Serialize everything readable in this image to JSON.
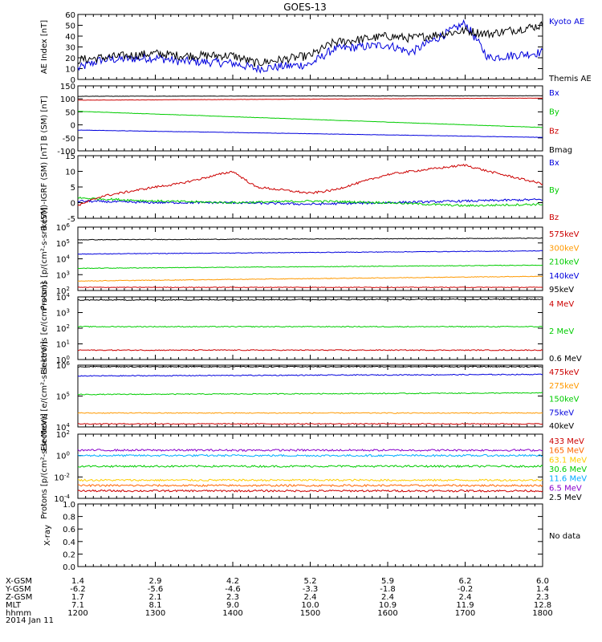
{
  "title": "GOES-13",
  "chart_data": [
    {
      "type": "line",
      "panel": "ae",
      "ylabel": "AE Index [nT]",
      "ylim": [
        0,
        60
      ],
      "yticks": [
        0,
        10,
        20,
        30,
        40,
        50,
        60
      ],
      "scale": "linear",
      "legend_placement": "right",
      "series": [
        {
          "name": "Kyoto AE",
          "color": "#0000dd",
          "x": [
            1200,
            1230,
            1300,
            1330,
            1400,
            1430,
            1500,
            1530,
            1600,
            1630,
            1700,
            1730,
            1800
          ],
          "values": [
            10,
            18,
            20,
            17,
            15,
            10,
            14,
            28,
            32,
            25,
            52,
            20,
            25
          ]
        },
        {
          "name": "Themis AE",
          "color": "#000000",
          "x": [
            1200,
            1230,
            1300,
            1330,
            1400,
            1430,
            1500,
            1530,
            1600,
            1630,
            1700,
            1730,
            1800
          ],
          "values": [
            18,
            20,
            24,
            22,
            22,
            15,
            22,
            34,
            40,
            38,
            45,
            42,
            50
          ]
        }
      ]
    },
    {
      "type": "line",
      "panel": "bfield",
      "ylabel": "B (SM) [nT]",
      "ylim": [
        -100,
        150
      ],
      "yticks": [
        -100,
        -50,
        0,
        50,
        100,
        150
      ],
      "scale": "linear",
      "legend_placement": "right",
      "series": [
        {
          "name": "Bx",
          "color": "#0000dd",
          "x": [
            1200,
            1800
          ],
          "values": [
            -20,
            -48
          ]
        },
        {
          "name": "By",
          "color": "#00cc00",
          "x": [
            1200,
            1800
          ],
          "values": [
            52,
            -10
          ]
        },
        {
          "name": "Bz",
          "color": "#cc0000",
          "x": [
            1200,
            1800
          ],
          "values": [
            95,
            103
          ]
        },
        {
          "name": "Bmag",
          "color": "#000000",
          "x": [
            1200,
            1800
          ],
          "values": [
            110,
            112
          ]
        }
      ]
    },
    {
      "type": "line",
      "panel": "bdiff",
      "ylabel": "B (SM)-IGRF (SM) [nT]",
      "ylim": [
        -5,
        15
      ],
      "yticks": [
        -5,
        0,
        5,
        10,
        15
      ],
      "scale": "linear",
      "legend_placement": "right",
      "series": [
        {
          "name": "Bx",
          "color": "#0000dd",
          "x": [
            1200,
            1300,
            1400,
            1500,
            1600,
            1700,
            1800
          ],
          "values": [
            0.5,
            0,
            0,
            -0.5,
            0,
            0.5,
            1
          ]
        },
        {
          "name": "By",
          "color": "#00cc00",
          "x": [
            1200,
            1300,
            1400,
            1500,
            1600,
            1700,
            1800
          ],
          "values": [
            1.5,
            0.5,
            0,
            0.5,
            0,
            -1,
            -0.5
          ]
        },
        {
          "name": "Bz",
          "color": "#cc0000",
          "x": [
            1200,
            1230,
            1300,
            1330,
            1400,
            1430,
            1500,
            1530,
            1600,
            1630,
            1700,
            1730,
            1800
          ],
          "values": [
            -1,
            2,
            5,
            6,
            10,
            5,
            3,
            4,
            9,
            10,
            12,
            10,
            6
          ]
        }
      ]
    },
    {
      "type": "line",
      "panel": "protons_low",
      "ylabel": "Protons [p/(cm²-s-sr-keV)]",
      "ylim_exp": [
        2,
        6
      ],
      "ytick_exponents": [
        2,
        3,
        4,
        5,
        6
      ],
      "scale": "log",
      "legend_placement": "right",
      "series": [
        {
          "name": "575keV",
          "color": "#cc0000",
          "x": [
            1200,
            1800
          ],
          "log10_values": [
            2.2,
            2.2
          ]
        },
        {
          "name": "300keV",
          "color": "#ff9900",
          "x": [
            1200,
            1800
          ],
          "log10_values": [
            2.6,
            2.9
          ]
        },
        {
          "name": "210keV",
          "color": "#00cc00",
          "x": [
            1200,
            1800
          ],
          "log10_values": [
            3.4,
            3.6
          ]
        },
        {
          "name": "140keV",
          "color": "#0000dd",
          "x": [
            1200,
            1800
          ],
          "log10_values": [
            4.3,
            4.5
          ]
        },
        {
          "name": "95keV",
          "color": "#000000",
          "x": [
            1200,
            1800
          ],
          "log10_values": [
            5.2,
            5.3
          ]
        }
      ]
    },
    {
      "type": "line",
      "panel": "electrons_mev",
      "ylabel": "Electrons [e/(cm²-s-sr)]",
      "ylim_exp": [
        0,
        4
      ],
      "ytick_exponents": [
        0,
        1,
        2,
        3,
        4
      ],
      "scale": "log",
      "legend_placement": "right",
      "series": [
        {
          "name": "4 MeV",
          "color": "#cc0000",
          "x": [
            1200,
            1800
          ],
          "log10_values": [
            0.6,
            0.6
          ]
        },
        {
          "name": "2 MeV",
          "color": "#00cc00",
          "x": [
            1200,
            1800
          ],
          "log10_values": [
            2.1,
            2.1
          ]
        },
        {
          "name": "0.6 MeV",
          "color": "#000000",
          "x": [
            1200,
            1800
          ],
          "log10_values": [
            3.8,
            3.85
          ]
        }
      ]
    },
    {
      "type": "line",
      "panel": "electrons_kev",
      "ylabel": "Electrons [e/(cm²-s-sr-keV)]",
      "ylim_exp": [
        4,
        6
      ],
      "ytick_exponents": [
        4,
        5,
        6
      ],
      "scale": "log",
      "legend_placement": "right",
      "series": [
        {
          "name": "475keV",
          "color": "#cc0000",
          "x": [
            1200,
            1800
          ],
          "log10_values": [
            4.1,
            4.1
          ]
        },
        {
          "name": "275keV",
          "color": "#ff9900",
          "x": [
            1200,
            1800
          ],
          "log10_values": [
            4.45,
            4.45
          ]
        },
        {
          "name": "150keV",
          "color": "#00cc00",
          "x": [
            1200,
            1800
          ],
          "log10_values": [
            5.05,
            5.1
          ]
        },
        {
          "name": "75keV",
          "color": "#0000dd",
          "x": [
            1200,
            1800
          ],
          "log10_values": [
            5.65,
            5.7
          ]
        },
        {
          "name": "40keV",
          "color": "#000000",
          "x": [
            1200,
            1800
          ],
          "log10_values": [
            5.95,
            5.95
          ]
        }
      ]
    },
    {
      "type": "line",
      "panel": "protons_mev",
      "ylabel": "Protons [p/(cm²-s-sr-MeV)]",
      "ylim_exp": [
        -4,
        2
      ],
      "ytick_exponents": [
        -4,
        -2,
        0,
        2
      ],
      "scale": "log",
      "legend_placement": "right",
      "series": [
        {
          "name": "433 MeV",
          "color": "#cc0000",
          "x": [
            1200,
            1800
          ],
          "log10_values": [
            -3.3,
            -3.3
          ]
        },
        {
          "name": "165 MeV",
          "color": "#ff6600",
          "x": [
            1200,
            1800
          ],
          "log10_values": [
            -2.8,
            -2.8
          ]
        },
        {
          "name": "63.1 MeV",
          "color": "#ffcc00",
          "x": [
            1200,
            1800
          ],
          "log10_values": [
            -2.3,
            -2.3
          ]
        },
        {
          "name": "30.6 MeV",
          "color": "#00cc00",
          "x": [
            1200,
            1800
          ],
          "log10_values": [
            -1.0,
            -1.0
          ]
        },
        {
          "name": "11.6 MeV",
          "color": "#00aaff",
          "x": [
            1200,
            1800
          ],
          "log10_values": [
            0.0,
            0.0
          ]
        },
        {
          "name": "6.5 MeV",
          "color": "#8800cc",
          "x": [
            1200,
            1800
          ],
          "log10_values": [
            0.5,
            0.5
          ]
        },
        {
          "name": "2.5 MeV",
          "color": "#000000",
          "x": [
            1200,
            1800
          ],
          "log10_values": [
            2.1,
            2.1
          ]
        }
      ]
    },
    {
      "type": "line",
      "panel": "xray",
      "ylabel": "X-ray",
      "ylim": [
        0,
        1
      ],
      "yticks": [
        "0.0",
        "0.2",
        "0.4",
        "0.6",
        "0.8",
        "1.0"
      ],
      "scale": "linear",
      "legend_placement": "right",
      "note": "No data",
      "series": []
    }
  ],
  "time_axis": {
    "range": [
      1200,
      1800
    ],
    "ticks": [
      1200,
      1300,
      1400,
      1500,
      1600,
      1700,
      1800
    ],
    "rows": [
      {
        "label": "X-GSM",
        "values": [
          "1.4",
          "2.9",
          "4.2",
          "5.2",
          "5.9",
          "6.2",
          "6.0"
        ]
      },
      {
        "label": "Y-GSM",
        "values": [
          "-6.2",
          "-5.6",
          "-4.6",
          "-3.3",
          "-1.8",
          "-0.2",
          "1.4"
        ]
      },
      {
        "label": "Z-GSM",
        "values": [
          "1.7",
          "2.1",
          "2.3",
          "2.4",
          "2.4",
          "2.4",
          "2.3"
        ]
      },
      {
        "label": "MLT",
        "values": [
          "7.1",
          "8.1",
          "9.0",
          "10.0",
          "10.9",
          "11.9",
          "12.8"
        ]
      },
      {
        "label": "hhmm",
        "values": [
          "1200",
          "1300",
          "1400",
          "1500",
          "1600",
          "1700",
          "1800"
        ]
      }
    ],
    "date": "2014 Jan 11"
  }
}
